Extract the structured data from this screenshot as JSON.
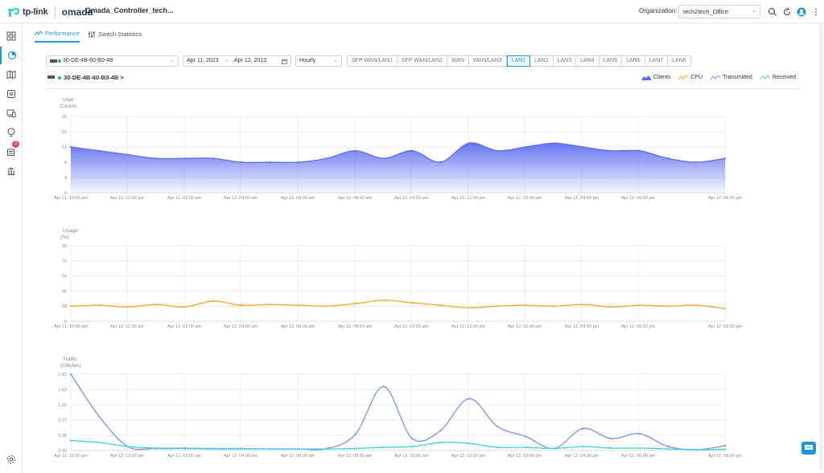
{
  "header": {
    "logo_brand": "tp-link",
    "logo_product": "omada",
    "app_title": "Omada_Controller_tech...",
    "org_label": "Organization:",
    "org_value": "tech2tech_Office"
  },
  "sidebar": {
    "items": [
      {
        "icon": "dashboard-icon"
      },
      {
        "icon": "statistics-icon",
        "active": true
      },
      {
        "icon": "map-icon"
      },
      {
        "icon": "devices-icon"
      },
      {
        "icon": "clients-icon"
      },
      {
        "icon": "insight-icon"
      },
      {
        "icon": "logs-icon",
        "badge": "2"
      },
      {
        "icon": "reports-icon"
      },
      {
        "icon": "settings-icon"
      }
    ]
  },
  "tabs": [
    {
      "label": "Performance",
      "active": true
    },
    {
      "label": "Switch Statistics",
      "active": false
    }
  ],
  "filters": {
    "device": "30-DE-4B-60-B0-4B",
    "date_from": "Apr 11, 2023",
    "date_sep": "–",
    "date_to": "Apr 12, 2023",
    "interval": "Hourly",
    "ports": [
      "SFP WAN/LAN1",
      "SFP WAN/LAN2",
      "WAN",
      "WAN/LAN3",
      "LAN1",
      "LAN2",
      "LAN3",
      "LAN4",
      "LAN5",
      "LAN6",
      "LAN7",
      "LAN8"
    ],
    "active_port": "LAN1"
  },
  "device_link": "30-DE-4B-60-B0-4B >",
  "legend": [
    {
      "label": "Clients",
      "color": "#5b6cf0"
    },
    {
      "label": "CPU",
      "color": "#f5a623"
    },
    {
      "label": "Transmitted",
      "color": "#7f8cf5"
    },
    {
      "label": "Received",
      "color": "#3ccfe0"
    }
  ],
  "chart_data": [
    {
      "type": "area",
      "ylabel": "User Counts",
      "ylim": [
        0,
        20
      ],
      "yticks": [
        "20",
        "16",
        "12",
        "8",
        "4",
        "0"
      ],
      "xticks": [
        "Apr 11, 10:00 pm",
        "Apr 12, 12:00 am",
        "Apr 12, 02:00 am",
        "Apr 12, 04:00 am",
        "Apr 12, 06:00 am",
        "Apr 12, 08:00 am",
        "Apr 12, 10:00 am",
        "Apr 12, 12:00 pm",
        "Apr 12, 02:00 pm",
        "Apr 12, 04:00 pm",
        "Apr 12, 06:00 pm",
        "Apr 12, 09:00 pm"
      ],
      "series": [
        {
          "name": "Clients",
          "color": "#5b6cf0",
          "values": [
            12,
            11,
            10,
            9,
            9,
            9,
            8,
            8,
            8,
            9,
            11,
            9,
            11,
            8,
            13,
            11,
            12,
            13,
            12,
            11,
            11,
            9,
            8,
            9
          ]
        }
      ]
    },
    {
      "type": "line",
      "ylabel": "Usage (%)",
      "ylim": [
        0,
        90
      ],
      "yticks": [
        "90",
        "72",
        "54",
        "36",
        "18",
        "0"
      ],
      "xticks": [
        "Apr 11, 10:00 pm",
        "Apr 12, 12:00 am",
        "Apr 12, 02:00 am",
        "Apr 12, 04:00 am",
        "Apr 12, 06:00 am",
        "Apr 12, 08:00 am",
        "Apr 12, 10:00 am",
        "Apr 12, 12:00 pm",
        "Apr 12, 02:00 pm",
        "Apr 12, 04:00 pm",
        "Apr 12, 06:00 pm",
        "Apr 12, 09:00 pm"
      ],
      "series": [
        {
          "name": "CPU",
          "color": "#f5a623",
          "values": [
            18,
            19,
            17,
            20,
            17,
            24,
            19,
            20,
            19,
            18,
            21,
            25,
            22,
            19,
            16,
            18,
            19,
            18,
            20,
            17,
            19,
            18,
            19,
            15
          ]
        }
      ]
    },
    {
      "type": "line",
      "ylabel": "Traffic (GBytes)",
      "ylim": [
        0,
        1.91
      ],
      "yticks": [
        "1.91",
        "1.53",
        "1.15",
        "0.77",
        "0.38",
        "0.00"
      ],
      "xticks": [
        "Apr 11, 10:00 pm",
        "Apr 12, 12:00 am",
        "Apr 12, 02:00 am",
        "Apr 12, 04:00 am",
        "Apr 12, 06:00 am",
        "Apr 12, 08:00 am",
        "Apr 12, 10:00 am",
        "Apr 12, 12:00 pm",
        "Apr 12, 02:00 pm",
        "Apr 12, 04:00 pm",
        "Apr 12, 06:00 pm",
        "Apr 12, 09:00 pm"
      ],
      "series": [
        {
          "name": "Transmitted",
          "color": "#7f8cf5",
          "values": [
            1.91,
            0.85,
            0.1,
            0.05,
            0.05,
            0.04,
            0.04,
            0.04,
            0.04,
            0.05,
            0.4,
            1.6,
            0.3,
            0.5,
            1.3,
            0.6,
            0.35,
            0.05,
            0.55,
            0.3,
            0.42,
            0.1,
            0.02,
            0.12
          ]
        },
        {
          "name": "Received",
          "color": "#3ccfe0",
          "values": [
            0.25,
            0.2,
            0.1,
            0.06,
            0.06,
            0.05,
            0.05,
            0.04,
            0.04,
            0.04,
            0.05,
            0.08,
            0.1,
            0.2,
            0.18,
            0.08,
            0.08,
            0.05,
            0.1,
            0.06,
            0.06,
            0.04,
            0.02,
            0.03
          ]
        }
      ]
    }
  ]
}
